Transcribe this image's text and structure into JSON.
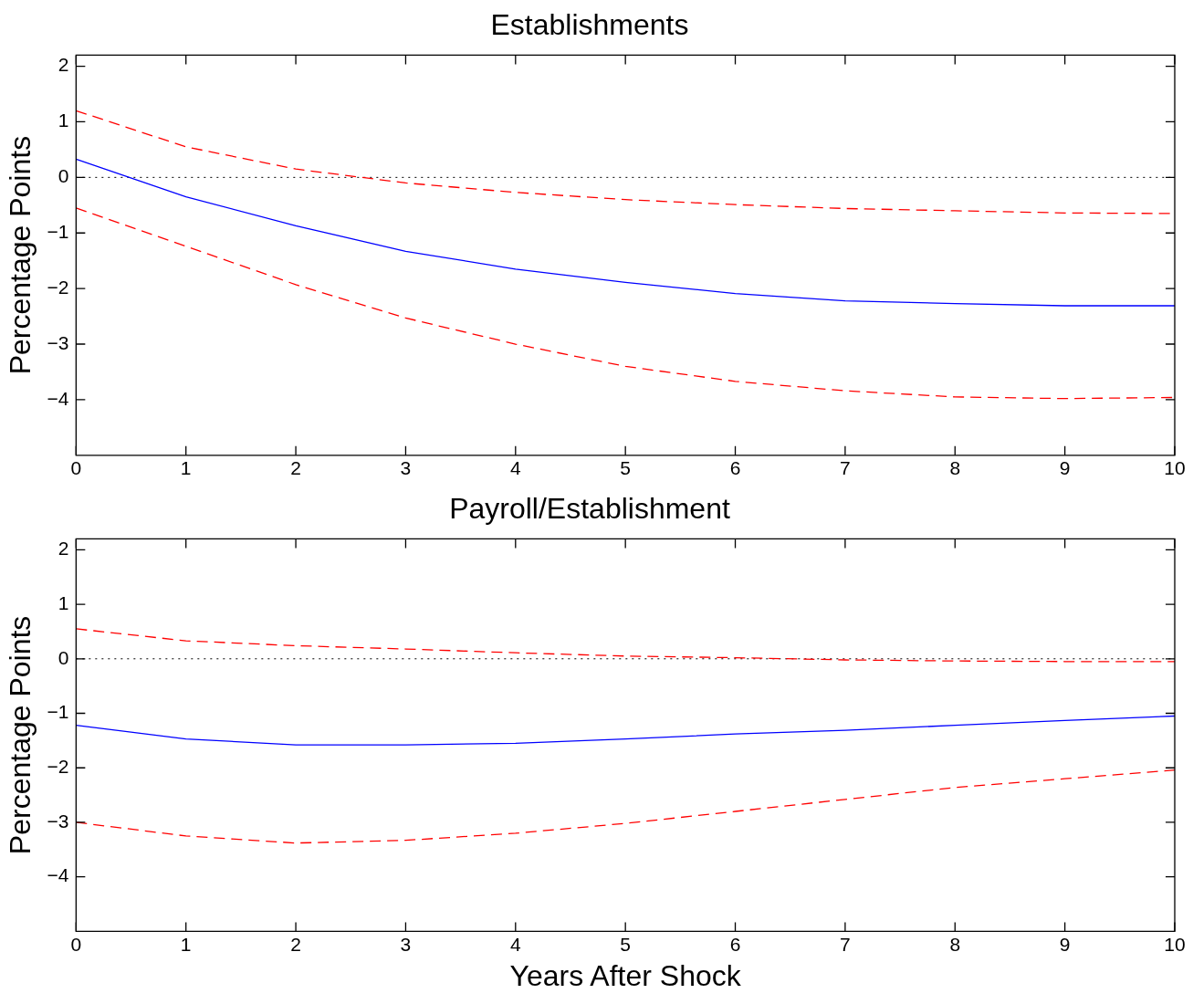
{
  "chart_data": [
    {
      "type": "line",
      "title": "Establishments",
      "ylabel": "Percentage Points",
      "x": [
        0,
        1,
        2,
        3,
        4,
        5,
        6,
        7,
        8,
        9,
        10
      ],
      "xlim": [
        0,
        10
      ],
      "xticks": [
        0,
        1,
        2,
        3,
        4,
        5,
        6,
        7,
        8,
        9,
        10
      ],
      "ylim": [
        -5,
        2.2
      ],
      "yticks": [
        -4,
        -3,
        -2,
        -1,
        0,
        1,
        2
      ],
      "legend": false,
      "grid": false,
      "series": [
        {
          "color": "#0000ff",
          "line_style": "solid",
          "values": [
            0.33,
            -0.35,
            -0.87,
            -1.33,
            -1.65,
            -1.89,
            -2.09,
            -2.22,
            -2.27,
            -2.31,
            -2.31
          ]
        },
        {
          "color": "#ff0000",
          "line_style": "dashed",
          "values": [
            1.2,
            0.55,
            0.15,
            -0.1,
            -0.27,
            -0.4,
            -0.49,
            -0.56,
            -0.6,
            -0.64,
            -0.65
          ]
        },
        {
          "color": "#ff0000",
          "line_style": "dashed",
          "values": [
            -0.55,
            -1.24,
            -1.93,
            -2.53,
            -3.0,
            -3.4,
            -3.67,
            -3.84,
            -3.95,
            -3.98,
            -3.96
          ]
        }
      ],
      "ref_lines": [
        {
          "axis": "y",
          "value": 0,
          "color": "#000000",
          "line_style": "dotted"
        }
      ]
    },
    {
      "type": "line",
      "title": "Payroll/Establishment",
      "ylabel": "Percentage Points",
      "xlabel": "Years After Shock",
      "x": [
        0,
        1,
        2,
        3,
        4,
        5,
        6,
        7,
        8,
        9,
        10
      ],
      "xlim": [
        0,
        10
      ],
      "xticks": [
        0,
        1,
        2,
        3,
        4,
        5,
        6,
        7,
        8,
        9,
        10
      ],
      "ylim": [
        -5,
        2.2
      ],
      "yticks": [
        -4,
        -3,
        -2,
        -1,
        0,
        1,
        2
      ],
      "legend": false,
      "grid": false,
      "series": [
        {
          "color": "#0000ff",
          "line_style": "solid",
          "values": [
            -1.22,
            -1.47,
            -1.58,
            -1.58,
            -1.55,
            -1.47,
            -1.38,
            -1.31,
            -1.22,
            -1.13,
            -1.05
          ]
        },
        {
          "color": "#ff0000",
          "line_style": "dashed",
          "values": [
            0.55,
            0.33,
            0.24,
            0.18,
            0.11,
            0.05,
            0.02,
            -0.02,
            -0.04,
            -0.05,
            -0.05
          ]
        },
        {
          "color": "#ff0000",
          "line_style": "dashed",
          "values": [
            -3.0,
            -3.25,
            -3.38,
            -3.33,
            -3.2,
            -3.02,
            -2.8,
            -2.58,
            -2.36,
            -2.2,
            -2.04
          ]
        }
      ],
      "ref_lines": [
        {
          "axis": "y",
          "value": 0,
          "color": "#000000",
          "line_style": "dotted"
        }
      ]
    }
  ]
}
